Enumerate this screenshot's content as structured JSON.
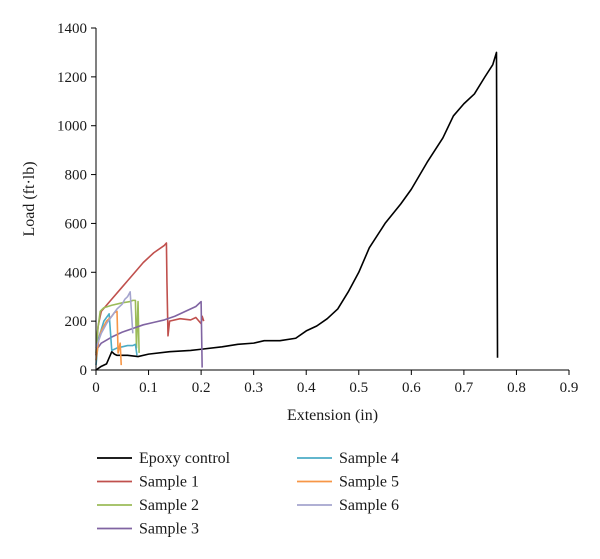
{
  "chart_data": {
    "type": "line",
    "xlabel": "Extension (in)",
    "ylabel": "Load (ft·lb)",
    "xlim": [
      0,
      0.9
    ],
    "ylim": [
      0,
      1400
    ],
    "x_ticks": [
      0,
      0.1,
      0.2,
      0.3,
      0.4,
      0.5,
      0.6,
      0.7,
      0.8,
      0.9
    ],
    "x_tick_labels": [
      "0",
      "0.1",
      "0.2",
      "0.3",
      "0.4",
      "0.5",
      "0.6",
      "0.7",
      "0.8",
      "0.9"
    ],
    "y_ticks": [
      0,
      200,
      400,
      600,
      800,
      1000,
      1200,
      1400
    ],
    "y_tick_labels": [
      "0",
      "200",
      "400",
      "600",
      "800",
      "1000",
      "1200",
      "1400"
    ],
    "grid": false,
    "legend_position": "bottom",
    "series": [
      {
        "name": "Epoxy control",
        "color": "#000000",
        "points": [
          [
            0,
            0
          ],
          [
            0.01,
            15
          ],
          [
            0.02,
            25
          ],
          [
            0.025,
            50
          ],
          [
            0.03,
            75
          ],
          [
            0.035,
            65
          ],
          [
            0.04,
            60
          ],
          [
            0.06,
            60
          ],
          [
            0.08,
            55
          ],
          [
            0.1,
            65
          ],
          [
            0.14,
            75
          ],
          [
            0.18,
            80
          ],
          [
            0.2,
            85
          ],
          [
            0.24,
            95
          ],
          [
            0.27,
            105
          ],
          [
            0.3,
            110
          ],
          [
            0.32,
            120
          ],
          [
            0.35,
            120
          ],
          [
            0.38,
            130
          ],
          [
            0.4,
            160
          ],
          [
            0.42,
            180
          ],
          [
            0.44,
            210
          ],
          [
            0.46,
            250
          ],
          [
            0.48,
            320
          ],
          [
            0.5,
            400
          ],
          [
            0.52,
            500
          ],
          [
            0.55,
            600
          ],
          [
            0.58,
            680
          ],
          [
            0.6,
            740
          ],
          [
            0.63,
            850
          ],
          [
            0.66,
            950
          ],
          [
            0.68,
            1040
          ],
          [
            0.7,
            1090
          ],
          [
            0.72,
            1130
          ],
          [
            0.74,
            1200
          ],
          [
            0.755,
            1250
          ],
          [
            0.762,
            1300
          ],
          [
            0.764,
            50
          ]
        ]
      },
      {
        "name": "Sample 1",
        "color": "#c0504d",
        "points": [
          [
            0,
            60
          ],
          [
            0.004,
            180
          ],
          [
            0.01,
            240
          ],
          [
            0.03,
            290
          ],
          [
            0.05,
            340
          ],
          [
            0.07,
            390
          ],
          [
            0.09,
            440
          ],
          [
            0.11,
            480
          ],
          [
            0.13,
            510
          ],
          [
            0.134,
            520
          ],
          [
            0.135,
            360
          ],
          [
            0.137,
            140
          ],
          [
            0.14,
            200
          ],
          [
            0.16,
            210
          ],
          [
            0.18,
            205
          ],
          [
            0.19,
            215
          ],
          [
            0.2,
            190
          ],
          [
            0.202,
            220
          ],
          [
            0.205,
            200
          ]
        ]
      },
      {
        "name": "Sample 2",
        "color": "#9bbb59",
        "points": [
          [
            0,
            70
          ],
          [
            0.003,
            160
          ],
          [
            0.008,
            240
          ],
          [
            0.015,
            255
          ],
          [
            0.03,
            265
          ],
          [
            0.05,
            275
          ],
          [
            0.065,
            280
          ],
          [
            0.07,
            285
          ],
          [
            0.075,
            285
          ],
          [
            0.077,
            90
          ],
          [
            0.08,
            280
          ],
          [
            0.082,
            70
          ]
        ]
      },
      {
        "name": "Sample 3",
        "color": "#8064a2",
        "points": [
          [
            0,
            80
          ],
          [
            0.01,
            110
          ],
          [
            0.03,
            135
          ],
          [
            0.05,
            155
          ],
          [
            0.07,
            170
          ],
          [
            0.09,
            185
          ],
          [
            0.11,
            195
          ],
          [
            0.13,
            205
          ],
          [
            0.15,
            220
          ],
          [
            0.17,
            240
          ],
          [
            0.19,
            260
          ],
          [
            0.2,
            280
          ],
          [
            0.202,
            10
          ]
        ]
      },
      {
        "name": "Sample 4",
        "color": "#4bacc6",
        "points": [
          [
            0,
            20
          ],
          [
            0.005,
            130
          ],
          [
            0.015,
            200
          ],
          [
            0.025,
            230
          ],
          [
            0.03,
            80
          ],
          [
            0.04,
            90
          ],
          [
            0.05,
            95
          ],
          [
            0.06,
            100
          ],
          [
            0.07,
            100
          ],
          [
            0.075,
            105
          ],
          [
            0.078,
            60
          ]
        ]
      },
      {
        "name": "Sample 5",
        "color": "#f79646",
        "points": [
          [
            0,
            40
          ],
          [
            0.005,
            120
          ],
          [
            0.01,
            160
          ],
          [
            0.02,
            200
          ],
          [
            0.03,
            220
          ],
          [
            0.035,
            235
          ],
          [
            0.04,
            240
          ],
          [
            0.042,
            70
          ],
          [
            0.046,
            110
          ],
          [
            0.048,
            20
          ]
        ]
      },
      {
        "name": "Sample 6",
        "color": "#a5a5ce",
        "points": [
          [
            0,
            90
          ],
          [
            0.01,
            150
          ],
          [
            0.02,
            190
          ],
          [
            0.03,
            220
          ],
          [
            0.04,
            250
          ],
          [
            0.05,
            270
          ],
          [
            0.055,
            290
          ],
          [
            0.06,
            300
          ],
          [
            0.065,
            320
          ],
          [
            0.07,
            150
          ]
        ]
      }
    ]
  }
}
